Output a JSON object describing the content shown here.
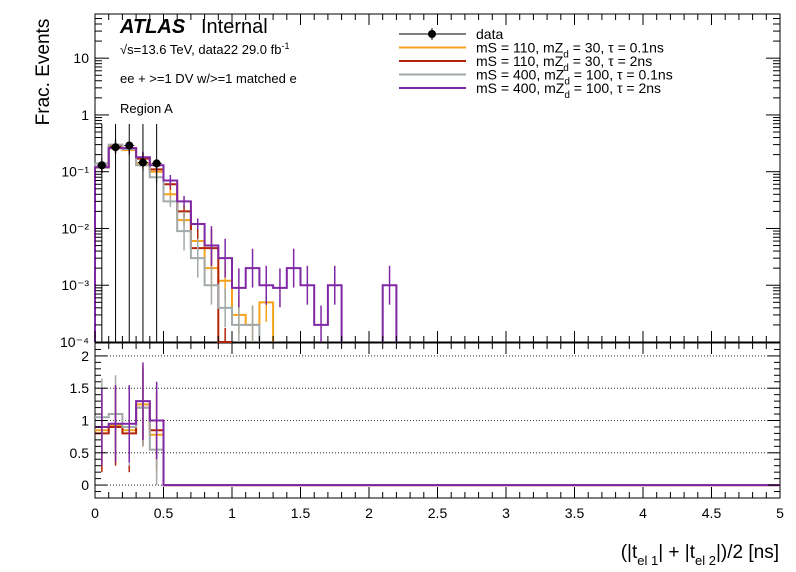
{
  "header": {
    "atlas": "ATLAS",
    "internal": "Internal",
    "energy_pre": "√s=13.6 TeV, data22 29.0 fb",
    "energy_sup": "-1",
    "selection": "ee + >=1 DV w/>=1 matched e",
    "region": "Region A"
  },
  "axes": {
    "ylabel_top": "Frac. Events",
    "xlabel_main": "(|t",
    "xlabel_sub1": "el 1",
    "xlabel_mid": "| + |t",
    "xlabel_sub2": "el 2",
    "xlabel_end": "|)/2 [ns]"
  },
  "legend": [
    {
      "label": "data",
      "color": "#000000",
      "marker": "point"
    },
    {
      "label": "mS = 110, mZ",
      "sub": "d",
      "rest": " = 30, τ = 0.1ns",
      "color": "#f5a21b"
    },
    {
      "label": "mS = 110, mZ",
      "sub": "d",
      "rest": " = 30, τ = 2ns",
      "color": "#b22407"
    },
    {
      "label": "mS = 400, mZ",
      "sub": "d",
      "rest": " = 100, τ = 0.1ns",
      "color": "#a2a9ab"
    },
    {
      "label": "mS = 400, mZ",
      "sub": "d",
      "rest": " = 100, τ = 2ns",
      "color": "#7f27a5"
    }
  ],
  "chart_data": [
    {
      "type": "line",
      "subtype": "step-histogram",
      "title": "",
      "xlabel": "(|t_el 1| + |t_el 2|)/2 [ns]",
      "ylabel": "Frac. Events",
      "xlim": [
        0,
        5
      ],
      "ylim": [
        0.0001,
        60
      ],
      "yscale": "log",
      "bin_width": 0.1,
      "x_ticks": [
        "0",
        "0.5",
        "1",
        "1.5",
        "2",
        "2.5",
        "3",
        "3.5",
        "4",
        "4.5",
        "5"
      ],
      "y_ticks": [
        "10⁻⁴",
        "10⁻³",
        "10⁻²",
        "10⁻¹",
        "1",
        "10"
      ],
      "series": [
        {
          "name": "data",
          "points": [
            [
              0.05,
              0.13
            ],
            [
              0.15,
              0.27
            ],
            [
              0.25,
              0.29
            ],
            [
              0.35,
              0.145
            ],
            [
              0.45,
              0.14
            ]
          ]
        },
        {
          "name": "mS = 110, mZd = 30, τ = 0.1ns",
          "bins": [
            [
              0,
              0.12
            ],
            [
              0.1,
              0.26
            ],
            [
              0.2,
              0.24
            ],
            [
              0.3,
              0.14
            ],
            [
              0.4,
              0.1
            ],
            [
              0.5,
              0.04
            ],
            [
              0.6,
              0.014
            ],
            [
              0.7,
              0.006
            ],
            [
              0.8,
              0.002
            ],
            [
              0.9,
              0.0012
            ],
            [
              1.0,
              0.0003
            ],
            [
              1.1,
              0.0002
            ],
            [
              1.2,
              0.0005
            ]
          ]
        },
        {
          "name": "mS = 110, mZd = 30, τ = 2ns",
          "bins": [
            [
              0,
              0.12
            ],
            [
              0.1,
              0.28
            ],
            [
              0.2,
              0.26
            ],
            [
              0.3,
              0.17
            ],
            [
              0.4,
              0.11
            ],
            [
              0.5,
              0.06
            ],
            [
              0.6,
              0.02
            ],
            [
              0.7,
              0.0045
            ],
            [
              0.8,
              0.0045
            ],
            [
              0.9,
              8e-05
            ]
          ]
        },
        {
          "name": "mS = 400, mZd = 100, τ = 0.1ns",
          "bins": [
            [
              0,
              0.14
            ],
            [
              0.1,
              0.3
            ],
            [
              0.2,
              0.25
            ],
            [
              0.3,
              0.13
            ],
            [
              0.4,
              0.08
            ],
            [
              0.5,
              0.03
            ],
            [
              0.6,
              0.009
            ],
            [
              0.7,
              0.003
            ],
            [
              0.8,
              0.001
            ],
            [
              0.9,
              0.0004
            ],
            [
              1.0,
              0.0002
            ],
            [
              1.1,
              0.0002
            ]
          ]
        },
        {
          "name": "mS = 400, mZd = 100, τ = 2ns",
          "bins": [
            [
              0,
              0.12
            ],
            [
              0.1,
              0.26
            ],
            [
              0.2,
              0.26
            ],
            [
              0.3,
              0.18
            ],
            [
              0.4,
              0.13
            ],
            [
              0.5,
              0.07
            ],
            [
              0.6,
              0.03
            ],
            [
              0.7,
              0.012
            ],
            [
              0.8,
              0.005
            ],
            [
              0.9,
              0.003
            ],
            [
              1.0,
              0.0009
            ],
            [
              1.1,
              0.002
            ],
            [
              1.2,
              0.001
            ],
            [
              1.3,
              0.0009
            ],
            [
              1.4,
              0.002
            ],
            [
              1.5,
              0.001
            ],
            [
              1.6,
              0.0002
            ],
            [
              1.7,
              0.001
            ],
            [
              2.1,
              0.001
            ]
          ]
        }
      ]
    },
    {
      "type": "line",
      "subtype": "ratio",
      "xlim": [
        0,
        5
      ],
      "ylim": [
        -0.2,
        2.2
      ],
      "y_ticks": [
        "0",
        "0.5",
        "1",
        "1.5",
        "2"
      ],
      "grid": true,
      "series": [
        {
          "name": "mS = 110, mZd = 30, τ = 0.1ns",
          "values": [
            [
              0,
              0.85
            ],
            [
              0.1,
              0.93
            ],
            [
              0.2,
              0.85
            ],
            [
              0.3,
              1.25
            ],
            [
              0.4,
              0.78
            ],
            [
              0.5,
              0
            ]
          ]
        },
        {
          "name": "mS = 110, mZd = 30, τ = 2ns",
          "values": [
            [
              0,
              0.8
            ],
            [
              0.1,
              0.9
            ],
            [
              0.2,
              0.8
            ],
            [
              0.3,
              1.2
            ],
            [
              0.4,
              0.85
            ],
            [
              0.5,
              0
            ]
          ]
        },
        {
          "name": "mS = 400, mZd = 100, τ = 0.1ns",
          "values": [
            [
              0,
              1.05
            ],
            [
              0.1,
              1.1
            ],
            [
              0.2,
              0.9
            ],
            [
              0.3,
              1.2
            ],
            [
              0.4,
              0.55
            ],
            [
              0.5,
              0
            ]
          ]
        },
        {
          "name": "mS = 400, mZd = 100, τ = 2ns",
          "values": [
            [
              0,
              0.9
            ],
            [
              0.1,
              0.95
            ],
            [
              0.2,
              0.95
            ],
            [
              0.3,
              1.3
            ],
            [
              0.4,
              1.0
            ],
            [
              0.5,
              0
            ]
          ]
        }
      ]
    }
  ]
}
